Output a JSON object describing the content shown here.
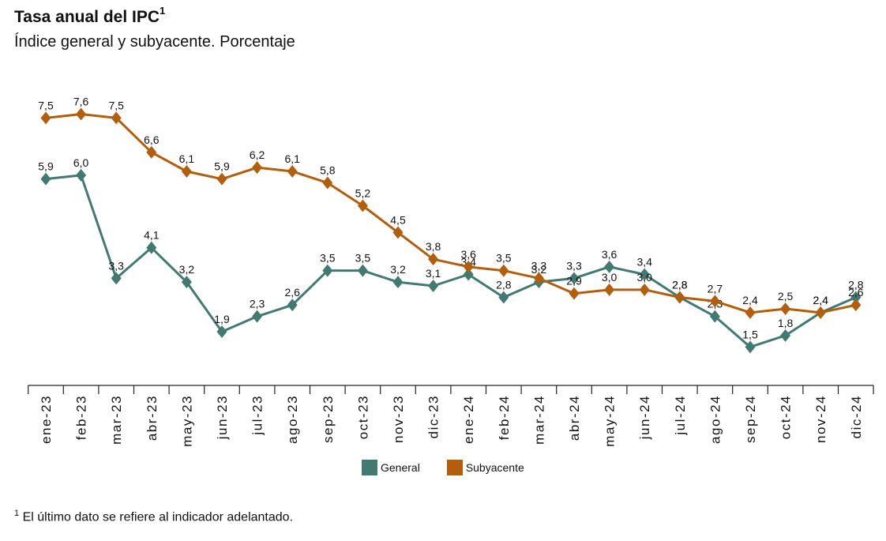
{
  "title": "Tasa anual del IPC",
  "title_sup": "1",
  "subtitle": "Índice general y subyacente. Porcentaje",
  "footnote_sup": "1",
  "footnote": "El último dato se refiere al indicador adelantado.",
  "colors": {
    "general": "#427a72",
    "subyacente": "#b35e0d"
  },
  "legend": {
    "general": "General",
    "subyacente": "Subyacente"
  },
  "chart_data": {
    "type": "line",
    "title": "Tasa anual del IPC",
    "subtitle": "Índice general y subyacente. Porcentaje",
    "categories": [
      "ene-23",
      "feb-23",
      "mar-23",
      "abr-23",
      "may-23",
      "jun-23",
      "jul-23",
      "ago-23",
      "sep-23",
      "oct-23",
      "nov-23",
      "dic-23",
      "ene-24",
      "feb-24",
      "mar-24",
      "abr-24",
      "may-24",
      "jun-24",
      "jul-24",
      "ago-24",
      "sep-24",
      "oct-24",
      "nov-24",
      "dic-24"
    ],
    "series": [
      {
        "name": "General",
        "values": [
          5.9,
          6.0,
          3.3,
          4.1,
          3.2,
          1.9,
          2.3,
          2.6,
          3.5,
          3.5,
          3.2,
          3.1,
          3.4,
          2.8,
          3.2,
          3.3,
          3.6,
          3.4,
          2.8,
          2.3,
          1.5,
          1.8,
          2.4,
          2.8
        ]
      },
      {
        "name": "Subyacente",
        "values": [
          7.5,
          7.6,
          7.5,
          6.6,
          6.1,
          5.9,
          6.2,
          6.1,
          5.8,
          5.2,
          4.5,
          3.8,
          3.6,
          3.5,
          3.3,
          2.9,
          3.0,
          3.0,
          2.8,
          2.7,
          2.4,
          2.5,
          2.4,
          2.6
        ]
      }
    ],
    "xlabel": "",
    "ylabel": "",
    "ylim": [
      1.0,
      7.6
    ],
    "grid": false,
    "legend_position": "bottom-center"
  }
}
